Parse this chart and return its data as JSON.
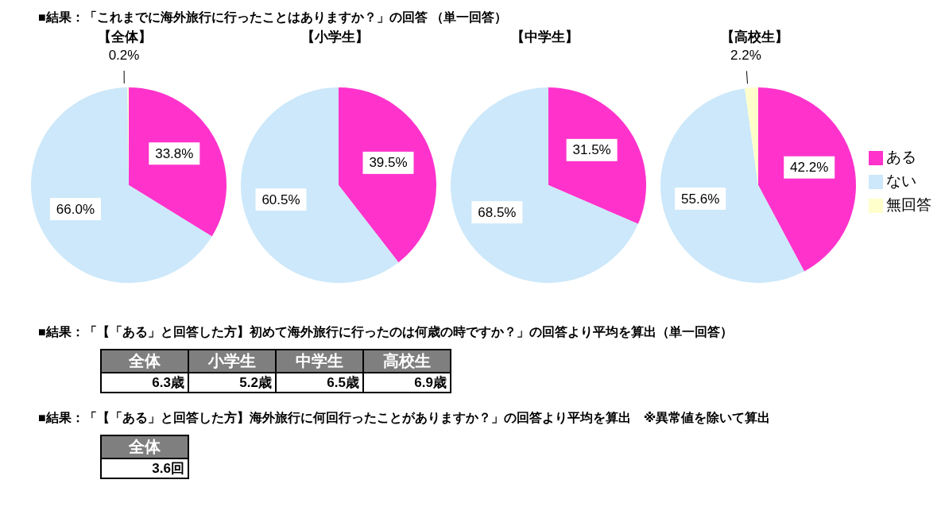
{
  "chart_data": [
    {
      "type": "other",
      "title": "■結果：「これまでに海外旅行に行ったことはありますか？」の回答 （単一回答）"
    },
    {
      "type": "pie",
      "title": "【全体】",
      "categories": [
        null,
        null,
        null
      ],
      "values": [
        33.8,
        66.0,
        0.2
      ],
      "value_labels": [
        "33.8%",
        "66.0%",
        "0.2%"
      ],
      "colors": [
        "#ff33cc",
        "#cce8fa",
        "#ffffcc"
      ],
      "legend": false
    },
    {
      "type": "pie",
      "title": "【小学生】",
      "categories": [
        null,
        null
      ],
      "values": [
        39.5,
        60.5
      ],
      "value_labels": [
        "39.5%",
        "60.5%"
      ],
      "colors": [
        "#ff33cc",
        "#cce8fa"
      ],
      "legend": false
    },
    {
      "type": "pie",
      "title": "【中学生】",
      "categories": [
        null,
        null
      ],
      "values": [
        31.5,
        68.5
      ],
      "value_labels": [
        "31.5%",
        "68.5%"
      ],
      "colors": [
        "#ff33cc",
        "#cce8fa"
      ],
      "legend": false
    },
    {
      "type": "pie",
      "title": "【高校生】",
      "categories": [
        "ある",
        "ない",
        "無回答"
      ],
      "values": [
        42.2,
        55.6,
        2.2
      ],
      "value_labels": [
        "42.2%",
        "55.6%",
        "2.2%"
      ],
      "colors": [
        "#ff33cc",
        "#cce8fa",
        "#ffffcc"
      ],
      "legend": "right"
    },
    {
      "type": "other",
      "title": "■結果：「【「ある」と回答した方】初めて海外旅行に行ったのは何歳の時ですか？」の回答より平均を算出（単一回答）",
      "categories": [
        "全体",
        "小学生",
        "中学生",
        "高校生"
      ],
      "value_labels": [
        "6.3歳",
        "5.2歳",
        "6.5歳",
        "6.9歳"
      ]
    },
    {
      "type": "other",
      "title": "■結果：「【「ある」と回答した方】海外旅行に何回行ったことがありますか？」の回答より平均を算出　※異常値を除いて算出",
      "categories": [
        "全体"
      ],
      "value_labels": [
        "3.6回"
      ]
    }
  ]
}
